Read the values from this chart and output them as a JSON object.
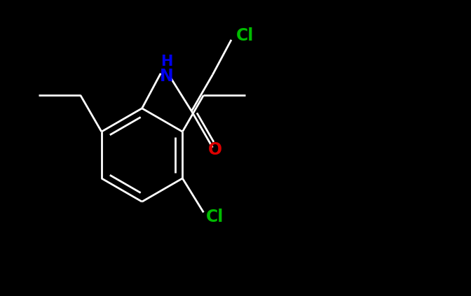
{
  "background_color": "#000000",
  "bond_color": "#ffffff",
  "nh_color": "#0000ee",
  "o_color": "#dd0000",
  "cl_color": "#00bb00",
  "figsize": [
    6.72,
    4.23
  ],
  "dpi": 100,
  "lw": 2.0,
  "font_size": 17,
  "font_weight": "bold",
  "xlim": [
    0,
    10
  ],
  "ylim": [
    0,
    6.3
  ]
}
